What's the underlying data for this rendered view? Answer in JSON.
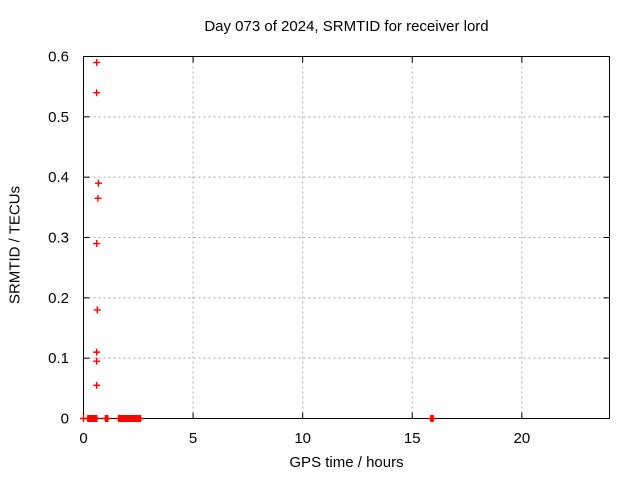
{
  "window": {
    "background": "#ffffff"
  },
  "chart_data": {
    "type": "scatter",
    "title": "Day 073 of 2024, SRMTID for receiver lord",
    "xlabel": "GPS time / hours",
    "ylabel": "SRMTID / TECUs",
    "xlim": [
      0,
      24
    ],
    "ylim": [
      0,
      0.6
    ],
    "xticks": [
      {
        "value": 0,
        "label": "0"
      },
      {
        "value": 5,
        "label": "5"
      },
      {
        "value": 10,
        "label": "10"
      },
      {
        "value": 15,
        "label": "15"
      },
      {
        "value": 20,
        "label": "20"
      }
    ],
    "yticks": [
      {
        "value": 0,
        "label": "0"
      },
      {
        "value": 0.1,
        "label": "0.1"
      },
      {
        "value": 0.2,
        "label": "0.2"
      },
      {
        "value": 0.3,
        "label": "0.3"
      },
      {
        "value": 0.4,
        "label": "0.4"
      },
      {
        "value": 0.5,
        "label": "0.5"
      },
      {
        "value": 0.6,
        "label": "0.6"
      }
    ],
    "grid": true,
    "grid_style": "dashed",
    "legend": false,
    "marker": "plus",
    "colors": {
      "marker": "#ff0000",
      "grid": "#a8a8a8",
      "frame": "#000000",
      "text": "#000000"
    },
    "series": [
      {
        "name": "SRMTID",
        "points": [
          [
            0.6,
            0.59
          ],
          [
            0.6,
            0.54
          ],
          [
            0.68,
            0.39
          ],
          [
            0.66,
            0.365
          ],
          [
            0.6,
            0.29
          ],
          [
            0.63,
            0.18
          ],
          [
            0.6,
            0.11
          ],
          [
            0.6,
            0.095
          ],
          [
            0.6,
            0.055
          ],
          [
            0.0,
            0
          ],
          [
            0.2,
            0
          ],
          [
            0.25,
            0
          ],
          [
            0.3,
            0
          ],
          [
            0.35,
            0
          ],
          [
            0.4,
            0
          ],
          [
            0.45,
            0
          ],
          [
            0.5,
            0
          ],
          [
            0.55,
            0
          ],
          [
            0.6,
            0
          ],
          [
            1.0,
            0
          ],
          [
            1.05,
            0
          ],
          [
            1.1,
            0
          ],
          [
            1.6,
            0
          ],
          [
            1.65,
            0
          ],
          [
            1.7,
            0
          ],
          [
            1.75,
            0
          ],
          [
            1.8,
            0
          ],
          [
            1.85,
            0
          ],
          [
            1.9,
            0
          ],
          [
            1.95,
            0
          ],
          [
            2.0,
            0
          ],
          [
            2.05,
            0
          ],
          [
            2.1,
            0
          ],
          [
            2.15,
            0
          ],
          [
            2.2,
            0
          ],
          [
            2.25,
            0
          ],
          [
            2.3,
            0
          ],
          [
            2.35,
            0
          ],
          [
            2.4,
            0
          ],
          [
            2.45,
            0
          ],
          [
            2.5,
            0
          ],
          [
            2.55,
            0
          ],
          [
            2.6,
            0
          ],
          [
            15.85,
            0
          ],
          [
            15.9,
            0
          ],
          [
            15.95,
            0
          ]
        ]
      }
    ]
  }
}
